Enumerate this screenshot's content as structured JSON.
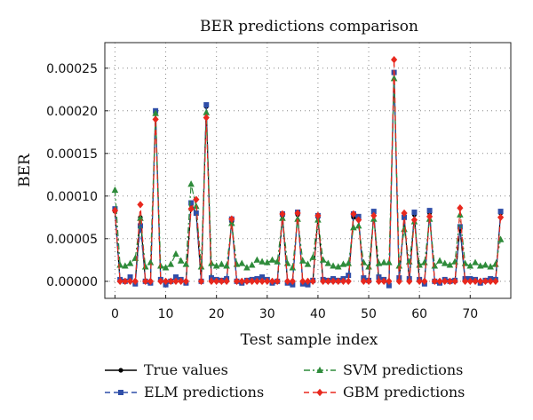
{
  "chart_data": {
    "type": "line",
    "title": "BER predictions comparison",
    "xlabel": "Test sample index",
    "ylabel": "BER",
    "xlim": [
      -2,
      78
    ],
    "ylim": [
      -2e-05,
      0.00028
    ],
    "xticks": [
      0,
      10,
      20,
      30,
      40,
      50,
      60,
      70
    ],
    "yticks": [
      0.0,
      5e-05,
      0.0001,
      0.00015,
      0.0002,
      0.00025
    ],
    "xtick_labels": [
      "0",
      "10",
      "20",
      "30",
      "40",
      "50",
      "60",
      "70"
    ],
    "ytick_labels": [
      "0.00000",
      "0.00005",
      "0.00010",
      "0.00015",
      "0.00020",
      "0.00025"
    ],
    "grid": true,
    "legend_position": "bottom",
    "x": [
      0,
      1,
      2,
      3,
      4,
      5,
      6,
      7,
      8,
      9,
      10,
      11,
      12,
      13,
      14,
      15,
      16,
      17,
      18,
      19,
      20,
      21,
      22,
      23,
      24,
      25,
      26,
      27,
      28,
      29,
      30,
      31,
      32,
      33,
      34,
      35,
      36,
      37,
      38,
      39,
      40,
      41,
      42,
      43,
      44,
      45,
      46,
      47,
      48,
      49,
      50,
      51,
      52,
      53,
      54,
      55,
      56,
      57,
      58,
      59,
      60,
      61,
      62,
      63,
      64,
      65,
      66,
      67,
      68,
      69,
      70,
      71,
      72,
      73,
      74,
      75,
      76
    ],
    "series": [
      {
        "name": "True values",
        "color": "#000000",
        "marker": "circle",
        "dash": "solid",
        "values": [
          8.2e-05,
          0,
          0,
          0,
          0,
          7.5e-05,
          0,
          0,
          0.000198,
          0,
          0,
          0,
          0,
          0,
          0,
          9e-05,
          8e-05,
          0,
          0.000205,
          0,
          0,
          0,
          0,
          7e-05,
          0,
          0,
          0,
          0,
          0,
          0,
          0,
          0,
          0,
          7.7e-05,
          0,
          0,
          7.8e-05,
          0,
          0,
          0,
          7.5e-05,
          0,
          0,
          0,
          0,
          0,
          0,
          7.5e-05,
          7.2e-05,
          0,
          0,
          8e-05,
          0,
          0,
          0,
          0.000245,
          0,
          7.5e-05,
          0,
          7.8e-05,
          0,
          0,
          8e-05,
          0,
          0,
          0,
          0,
          0,
          6.2e-05,
          0,
          0,
          0,
          0,
          0,
          0,
          0,
          8e-05
        ]
      },
      {
        "name": "ELM predictions",
        "color": "#2f4ea8",
        "marker": "square",
        "dash": "dash",
        "values": [
          8.5e-05,
          2e-06,
          0,
          5e-06,
          -3e-06,
          6.5e-05,
          0,
          -2e-06,
          0.0002,
          2e-06,
          -4e-06,
          0,
          5e-06,
          2e-06,
          -2e-06,
          9.2e-05,
          8e-05,
          0,
          0.000207,
          4e-06,
          2e-06,
          1e-06,
          3e-06,
          7.3e-05,
          0,
          -2e-06,
          1e-06,
          2e-06,
          3e-06,
          5e-06,
          2e-06,
          -2e-06,
          0,
          7.9e-05,
          -2e-06,
          -4e-06,
          8.1e-05,
          -3e-06,
          -4e-06,
          1e-06,
          7.7e-05,
          2e-06,
          1e-06,
          3e-06,
          1e-06,
          3e-06,
          7e-06,
          7.9e-05,
          7.6e-05,
          4e-06,
          1e-06,
          8.2e-05,
          5e-06,
          2e-06,
          -5e-06,
          0.000245,
          4e-06,
          7.5e-05,
          3e-06,
          8.1e-05,
          2e-06,
          -3e-06,
          8.3e-05,
          0,
          -2e-06,
          2e-06,
          0,
          1e-06,
          6.4e-05,
          3e-06,
          3e-06,
          2e-06,
          -2e-06,
          1e-06,
          3e-06,
          2e-06,
          8.2e-05
        ]
      },
      {
        "name": "SVM predictions",
        "color": "#2e8b3a",
        "marker": "triangle",
        "dash": "dashdot",
        "values": [
          0.000107,
          1.9e-05,
          1.8e-05,
          2.1e-05,
          2.7e-05,
          7.4e-05,
          1.7e-05,
          2.2e-05,
          0.000197,
          1.8e-05,
          1.6e-05,
          2e-05,
          3.2e-05,
          2.4e-05,
          2e-05,
          0.000114,
          8.8e-05,
          1.7e-05,
          0.000198,
          2.1e-05,
          1.8e-05,
          2e-05,
          1.8e-05,
          6.8e-05,
          2e-05,
          2.1e-05,
          1.6e-05,
          1.9e-05,
          2.5e-05,
          2.3e-05,
          2.2e-05,
          2.5e-05,
          2.3e-05,
          7.4e-05,
          2.1e-05,
          1.6e-05,
          7.3e-05,
          2.4e-05,
          2e-05,
          2.8e-05,
          7.2e-05,
          2.5e-05,
          2.1e-05,
          1.8e-05,
          1.7e-05,
          2e-05,
          2.1e-05,
          6.3e-05,
          6.5e-05,
          2.2e-05,
          1.7e-05,
          7.3e-05,
          2.1e-05,
          2.2e-05,
          2.2e-05,
          0.000238,
          1.8e-05,
          6.1e-05,
          2.3e-05,
          7e-05,
          1.9e-05,
          2.2e-05,
          7.3e-05,
          1.8e-05,
          2.4e-05,
          2.1e-05,
          1.9e-05,
          2.3e-05,
          7.8e-05,
          2.1e-05,
          1.8e-05,
          2.2e-05,
          1.8e-05,
          1.9e-05,
          1.7e-05,
          2e-05,
          4.9e-05
        ]
      },
      {
        "name": "GBM predictions",
        "color": "#e8281e",
        "marker": "diamond",
        "dash": "dash",
        "values": [
          8.3e-05,
          0,
          0,
          0,
          0,
          9e-05,
          0,
          0,
          0.00019,
          0,
          0,
          0,
          0,
          0,
          0,
          8.5e-05,
          9.6e-05,
          0,
          0.000192,
          0,
          0,
          0,
          0,
          7.3e-05,
          0,
          0,
          0,
          0,
          0,
          0,
          0,
          0,
          0,
          7.9e-05,
          0,
          0,
          8e-05,
          0,
          0,
          0,
          7.7e-05,
          0,
          0,
          0,
          0,
          0,
          0,
          7.9e-05,
          7.2e-05,
          0,
          0,
          7.7e-05,
          0,
          0,
          0,
          0.00026,
          0,
          8e-05,
          0,
          7.2e-05,
          0,
          0,
          7.6e-05,
          0,
          0,
          0,
          0,
          0,
          8.6e-05,
          0,
          0,
          0,
          0,
          0,
          0,
          0,
          7.5e-05
        ]
      }
    ]
  }
}
